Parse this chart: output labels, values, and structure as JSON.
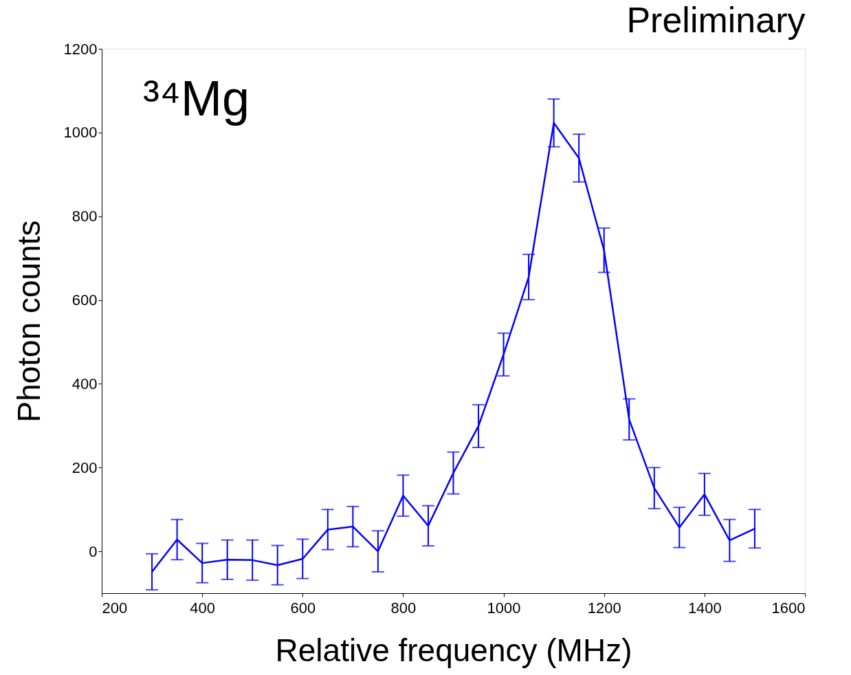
{
  "chart_data": {
    "type": "line",
    "title": "Preliminary",
    "xlabel": "Relative frequency (MHz)",
    "ylabel": "Photon counts",
    "annotations": [
      "³⁴Mg"
    ],
    "x": [
      300,
      350,
      400,
      450,
      500,
      550,
      600,
      650,
      700,
      750,
      800,
      850,
      900,
      950,
      1000,
      1050,
      1100,
      1150,
      1200,
      1250,
      1300,
      1350,
      1400,
      1450,
      1500
    ],
    "series": [
      {
        "color": "#0000ff",
        "values": [
          -49,
          28,
          -28,
          -20,
          -21,
          -33,
          -18,
          52,
          59,
          0,
          133,
          61,
          187,
          299,
          470,
          655,
          1023,
          939,
          719,
          315,
          151,
          57,
          136,
          26,
          54
        ],
        "errors": [
          43,
          48,
          47,
          47,
          48,
          47,
          47,
          48,
          48,
          49,
          49,
          48,
          50,
          51,
          51,
          54,
          57,
          57,
          53,
          49,
          49,
          48,
          50,
          50,
          46
        ]
      }
    ],
    "xlim": [
      200,
      1600
    ],
    "xticks": [
      200,
      400,
      600,
      800,
      1000,
      1200,
      1400,
      1600
    ],
    "ylim": [
      -100,
      1200
    ],
    "yticks": [
      0,
      200,
      400,
      600,
      800,
      1000,
      1200
    ],
    "grid": false,
    "marker": "none",
    "line_style": "solid"
  }
}
